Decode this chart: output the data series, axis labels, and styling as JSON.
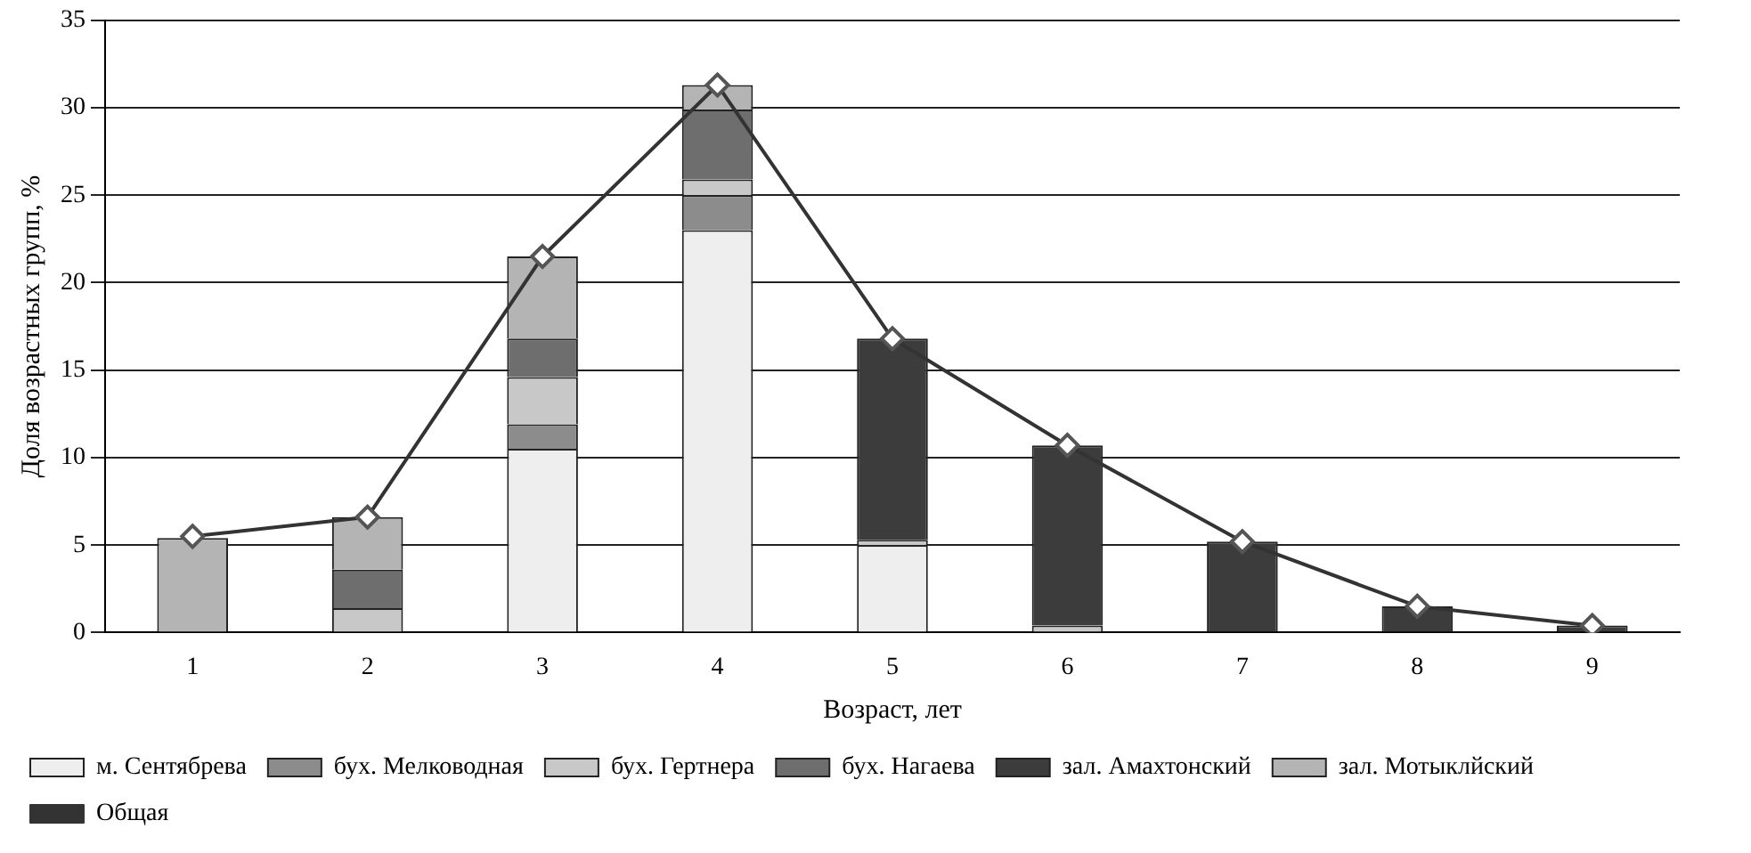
{
  "chart_data": {
    "type": "bar",
    "stacked": true,
    "xlabel": "Возраст, лет",
    "ylabel": "Доля возрастных групп, %",
    "categories": [
      "1",
      "2",
      "3",
      "4",
      "5",
      "6",
      "7",
      "8",
      "9"
    ],
    "series": [
      {
        "name": "м. Сентябрева",
        "color": "#eeeeee",
        "values": [
          0,
          0,
          10.5,
          23.0,
          5.0,
          0,
          0,
          0,
          0
        ]
      },
      {
        "name": "бух. Мелководная",
        "color": "#8c8c8c",
        "values": [
          0,
          0,
          1.4,
          2.0,
          0,
          0,
          0,
          0,
          0
        ]
      },
      {
        "name": "бух. Гертнера",
        "color": "#c8c8c8",
        "values": [
          0,
          1.4,
          2.7,
          0.9,
          0.3,
          0.4,
          0,
          0,
          0
        ]
      },
      {
        "name": "бух. Нагаева",
        "color": "#6e6e6e",
        "values": [
          0,
          2.2,
          2.2,
          4.0,
          0,
          0,
          0,
          0,
          0
        ]
      },
      {
        "name": "зал. Амахтонский",
        "color": "#3c3c3c",
        "values": [
          0,
          0,
          0,
          0,
          11.5,
          10.3,
          5.2,
          1.5,
          0.4
        ]
      },
      {
        "name": "зал. Мотыклйский",
        "color": "#b4b4b4",
        "values": [
          5.4,
          3.0,
          4.7,
          1.4,
          0,
          0,
          0,
          0,
          0
        ]
      },
      {
        "name": "Общая",
        "type": "line",
        "color": "#333333",
        "values": [
          5.5,
          6.6,
          21.5,
          31.3,
          16.8,
          10.7,
          5.2,
          1.5,
          0.4
        ]
      }
    ],
    "ylim": [
      0,
      35
    ],
    "yticks": [
      0,
      5,
      10,
      15,
      20,
      25,
      30,
      35
    ],
    "grid": "y",
    "legend": "bottom",
    "marker": "diamond"
  }
}
